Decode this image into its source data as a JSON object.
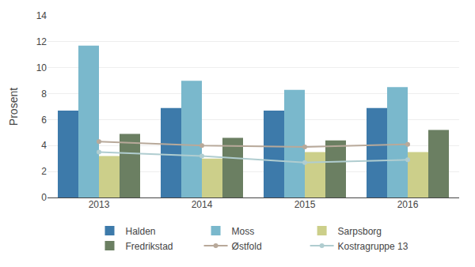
{
  "chart_data": {
    "type": "bar",
    "categories": [
      "2013",
      "2014",
      "2015",
      "2016"
    ],
    "series": [
      {
        "name": "Halden",
        "type": "bar",
        "color": "#3d7aaa",
        "values": [
          6.7,
          6.9,
          6.7,
          6.9
        ]
      },
      {
        "name": "Moss",
        "type": "bar",
        "color": "#7ab8cc",
        "values": [
          11.7,
          9.0,
          8.3,
          8.5
        ]
      },
      {
        "name": "Sarpsborg",
        "type": "bar",
        "color": "#cccf8a",
        "values": [
          3.2,
          3.0,
          3.5,
          3.5
        ]
      },
      {
        "name": "Fredrikstad",
        "type": "bar",
        "color": "#6b7f62",
        "values": [
          4.9,
          4.6,
          4.4,
          5.2
        ]
      },
      {
        "name": "Østfold",
        "type": "line",
        "marker": "circle",
        "color": "#b8a99a",
        "values": [
          4.3,
          4.0,
          3.9,
          4.1
        ]
      },
      {
        "name": "Kostragruppe 13",
        "type": "line",
        "marker": "circle",
        "color": "#b0cdd0",
        "values": [
          3.5,
          3.2,
          2.7,
          2.9
        ]
      }
    ],
    "ylabel": "Prosent",
    "ylim": [
      0,
      14
    ],
    "yticks": [
      0,
      2,
      4,
      6,
      8,
      10,
      12,
      14
    ],
    "grid": true,
    "legend": "bottom"
  }
}
